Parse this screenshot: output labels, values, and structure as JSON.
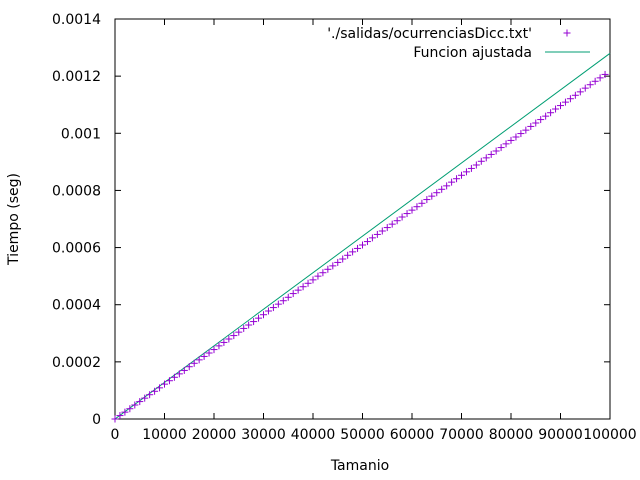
{
  "chart_data": {
    "type": "scatter",
    "title": "",
    "xlabel": "Tamanio",
    "ylabel": "Tiempo (seg)",
    "xlim": [
      0,
      100000
    ],
    "ylim": [
      0,
      0.0014
    ],
    "x_ticks": [
      0,
      10000,
      20000,
      30000,
      40000,
      50000,
      60000,
      70000,
      80000,
      90000,
      100000
    ],
    "x_tick_labels": [
      "0",
      "10000",
      "20000",
      "30000",
      "40000",
      "50000",
      "60000",
      "70000",
      "80000",
      "90000",
      "100000"
    ],
    "y_ticks": [
      0,
      0.0002,
      0.0004,
      0.0006,
      0.0008,
      0.001,
      0.0012,
      0.0014
    ],
    "y_tick_labels": [
      "0",
      "0.0002",
      "0.0004",
      "0.0006",
      "0.0008",
      "0.001",
      "0.0012",
      "0.0014"
    ],
    "grid": false,
    "legend_position": "top-right",
    "series": [
      {
        "name": "'./salidas/ocurrenciasDicc.txt'",
        "style": "points",
        "color": "#9400d3",
        "x": [
          0,
          1000,
          2000,
          3000,
          4000,
          5000,
          6000,
          7000,
          8000,
          9000,
          10000,
          11000,
          12000,
          13000,
          14000,
          15000,
          16000,
          17000,
          18000,
          19000,
          20000,
          21000,
          22000,
          23000,
          24000,
          25000,
          26000,
          27000,
          28000,
          29000,
          30000,
          31000,
          32000,
          33000,
          34000,
          35000,
          36000,
          37000,
          38000,
          39000,
          40000,
          41000,
          42000,
          43000,
          44000,
          45000,
          46000,
          47000,
          48000,
          49000,
          50000,
          51000,
          52000,
          53000,
          54000,
          55000,
          56000,
          57000,
          58000,
          59000,
          60000,
          61000,
          62000,
          63000,
          64000,
          65000,
          66000,
          67000,
          68000,
          69000,
          70000,
          71000,
          72000,
          73000,
          74000,
          75000,
          76000,
          77000,
          78000,
          79000,
          80000,
          81000,
          82000,
          83000,
          84000,
          85000,
          86000,
          87000,
          88000,
          89000,
          90000,
          91000,
          92000,
          93000,
          94000,
          95000,
          96000,
          97000,
          98000,
          99000
        ],
        "y": [
          0.0,
          1.2e-05,
          2.4e-05,
          3.6e-05,
          4.9e-05,
          6.1e-05,
          7.3e-05,
          8.5e-05,
          9.7e-05,
          0.000109,
          0.000122,
          0.000134,
          0.000146,
          0.000158,
          0.00017,
          0.000183,
          0.000195,
          0.000207,
          0.000219,
          0.000231,
          0.000243,
          0.000256,
          0.000268,
          0.00028,
          0.000292,
          0.000304,
          0.000317,
          0.000329,
          0.000341,
          0.000353,
          0.000365,
          0.000378,
          0.00039,
          0.000402,
          0.000414,
          0.000426,
          0.000439,
          0.000451,
          0.000463,
          0.000475,
          0.000487,
          0.0005,
          0.000512,
          0.000524,
          0.000536,
          0.000548,
          0.00056,
          0.000573,
          0.000585,
          0.000597,
          0.000609,
          0.000621,
          0.000634,
          0.000646,
          0.000658,
          0.00067,
          0.000682,
          0.000694,
          0.000707,
          0.000719,
          0.000731,
          0.000743,
          0.000755,
          0.000768,
          0.00078,
          0.000792,
          0.000804,
          0.000816,
          0.000829,
          0.000841,
          0.000853,
          0.000865,
          0.000877,
          0.000889,
          0.000902,
          0.000914,
          0.000926,
          0.000938,
          0.00095,
          0.000963,
          0.000975,
          0.000987,
          0.000999,
          0.001011,
          0.001024,
          0.001036,
          0.001048,
          0.00106,
          0.001072,
          0.001085,
          0.001097,
          0.001109,
          0.001121,
          0.001133,
          0.001145,
          0.001158,
          0.00117,
          0.001182,
          0.001194,
          0.001206
        ]
      },
      {
        "name": "Funcion ajustada",
        "style": "line",
        "color": "#009e73",
        "x": [
          0,
          100000
        ],
        "y": [
          0.0,
          0.00128
        ]
      }
    ]
  }
}
